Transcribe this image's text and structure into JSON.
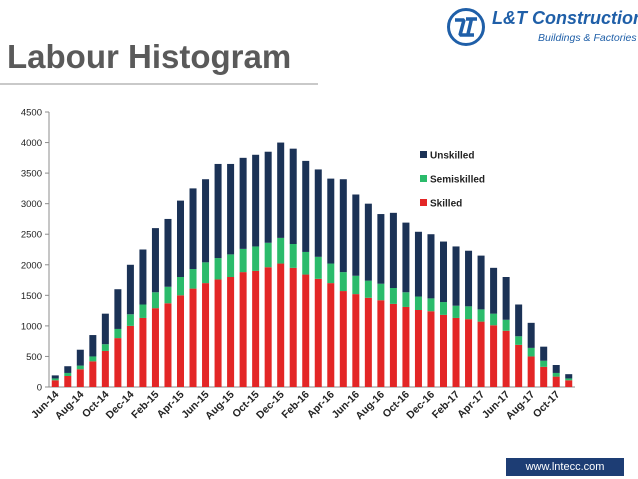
{
  "slide": {
    "title": "Labour Histogram",
    "footer_url": "www.lntecc.com"
  },
  "logo": {
    "name": "L&T Construction",
    "tagline": "Buildings & Factories"
  },
  "colors": {
    "skilled": "#e32626",
    "semiskilled": "#2bbb6b",
    "unskilled": "#1b3256",
    "title": "#5a5a5a",
    "brand": "#1f5fa8",
    "footer": "#1d3d74"
  },
  "chart_data": {
    "type": "bar",
    "stacked": true,
    "title": "",
    "xlabel": "",
    "ylabel": "",
    "ylim": [
      0,
      4500
    ],
    "yticks": [
      0,
      500,
      1000,
      1500,
      2000,
      2500,
      3000,
      3500,
      4000,
      4500
    ],
    "grid": false,
    "legend_position": "top-right",
    "categories": [
      "Jun-14",
      "Jul-14",
      "Aug-14",
      "Sep-14",
      "Oct-14",
      "Nov-14",
      "Dec-14",
      "Jan-15",
      "Feb-15",
      "Mar-15",
      "Apr-15",
      "May-15",
      "Jun-15",
      "Jul-15",
      "Aug-15",
      "Sep-15",
      "Oct-15",
      "Nov-15",
      "Dec-15",
      "Jan-16",
      "Feb-16",
      "Mar-16",
      "Apr-16",
      "May-16",
      "Jun-16",
      "Jul-16",
      "Aug-16",
      "Sep-16",
      "Oct-16",
      "Nov-16",
      "Dec-16",
      "Jan-17",
      "Feb-17",
      "Mar-17",
      "Apr-17",
      "May-17",
      "Jun-17",
      "Jul-17",
      "Aug-17",
      "Sep-17",
      "Oct-17",
      "Nov-17"
    ],
    "x_tick_labels": [
      "Jun-14",
      "Aug-14",
      "Oct-14",
      "Dec-14",
      "Feb-15",
      "Apr-15",
      "Jun-15",
      "Aug-15",
      "Oct-15",
      "Dec-15",
      "Feb-16",
      "Apr-16",
      "Jun-16",
      "Aug-16",
      "Oct-16",
      "Dec-16",
      "Feb-17",
      "Apr-17",
      "Jun-17",
      "Aug-17",
      "Oct-17"
    ],
    "series": [
      {
        "name": "Skilled",
        "values": [
          110,
          180,
          290,
          420,
          590,
          800,
          1000,
          1130,
          1290,
          1370,
          1500,
          1610,
          1700,
          1760,
          1800,
          1880,
          1900,
          1960,
          2020,
          1950,
          1840,
          1770,
          1700,
          1570,
          1520,
          1460,
          1420,
          1360,
          1310,
          1260,
          1240,
          1180,
          1130,
          1110,
          1070,
          1010,
          920,
          690,
          500,
          330,
          170,
          110
        ]
      },
      {
        "name": "Semiskilled",
        "values": [
          30,
          50,
          60,
          80,
          110,
          150,
          190,
          220,
          260,
          270,
          300,
          320,
          340,
          350,
          370,
          380,
          400,
          400,
          420,
          390,
          370,
          360,
          320,
          310,
          300,
          280,
          270,
          260,
          240,
          220,
          210,
          210,
          200,
          210,
          200,
          190,
          180,
          140,
          140,
          100,
          60,
          30
        ]
      },
      {
        "name": "Unskilled",
        "values": [
          50,
          110,
          260,
          350,
          500,
          650,
          810,
          900,
          1050,
          1110,
          1250,
          1320,
          1360,
          1540,
          1480,
          1490,
          1500,
          1490,
          1560,
          1560,
          1490,
          1430,
          1390,
          1520,
          1330,
          1260,
          1140,
          1230,
          1140,
          1060,
          1050,
          990,
          970,
          910,
          880,
          750,
          700,
          520,
          410,
          230,
          130,
          70
        ]
      }
    ]
  }
}
